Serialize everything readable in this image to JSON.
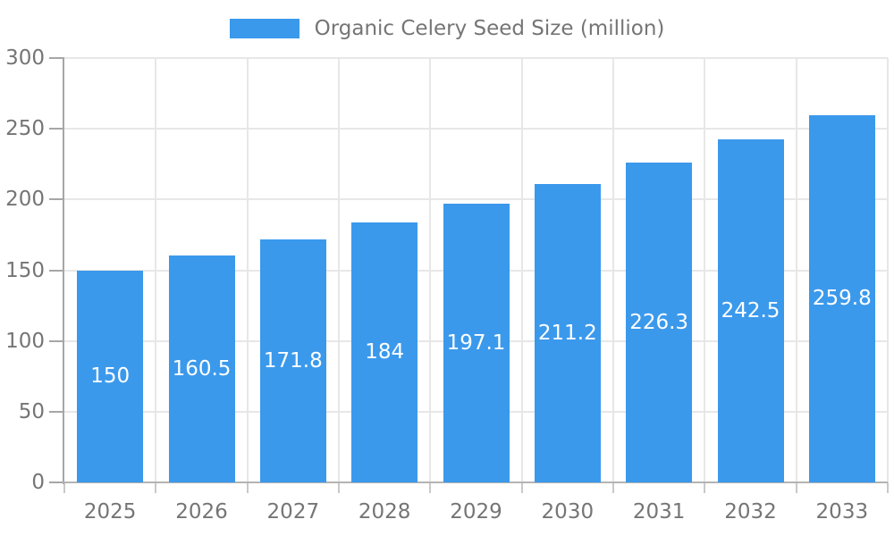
{
  "legend": {
    "label": "Organic Celery Seed Size (million)"
  },
  "colors": {
    "bar": "#3B99EC",
    "bar_label": "#ffffff",
    "grid": "#E7E7E7",
    "axis_y": "#A6A6A6",
    "axis_x": "#B3B3B3",
    "y_tick": "#A6A6A6",
    "x_tick": "#C9C9C9",
    "text": "#757575",
    "background": "#ffffff"
  },
  "chart_data": {
    "type": "bar",
    "title": "",
    "legend_entries": [
      "Organic Celery Seed Size (million)"
    ],
    "legend_position": "top-center",
    "categories": [
      "2025",
      "2026",
      "2027",
      "2028",
      "2029",
      "2030",
      "2031",
      "2032",
      "2033"
    ],
    "values": [
      150,
      160.5,
      171.8,
      184,
      197.1,
      211.2,
      226.3,
      242.5,
      259.8
    ],
    "xlabel": "",
    "ylabel": "",
    "ylim": [
      0,
      300
    ],
    "yticks": [
      0,
      50,
      100,
      150,
      200,
      250,
      300
    ],
    "grid": true,
    "bar_labels": "inside-center"
  }
}
